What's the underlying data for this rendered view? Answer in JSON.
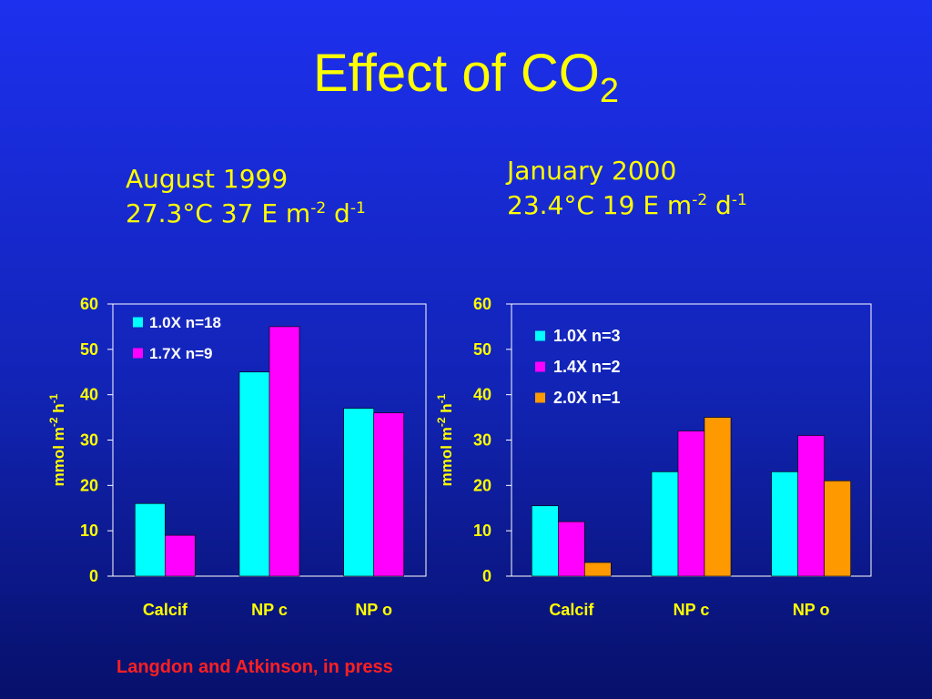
{
  "slide": {
    "title_main": "Effect of CO",
    "title_sub": "2",
    "citation": "Langdon and Atkinson, in press"
  },
  "conditions": {
    "left": {
      "line1": "August 1999",
      "temp_light": "27.3°C  37 E m",
      "exp1": "-2",
      "unit_d": " d",
      "exp2": "-1"
    },
    "right": {
      "line1": "January 2000",
      "temp_light": "23.4°C  19 E m",
      "exp1": "-2",
      "unit_d": " d",
      "exp2": "-1"
    }
  },
  "colors": {
    "series_1": "#00ffff",
    "series_2": "#ff00ff",
    "series_3": "#ff9900",
    "text": "#ffff00",
    "legend_text": "#ffffff",
    "citation": "#ff2020"
  },
  "chart_data": [
    {
      "type": "bar",
      "categories": [
        "Calcif",
        "NP c",
        "NP o"
      ],
      "ylabel_main": "mmol m",
      "ylabel_exp1": "-2",
      "ylabel_h": " h",
      "ylabel_exp2": "-1",
      "ylim": [
        0,
        60
      ],
      "yticks": [
        0,
        10,
        20,
        30,
        40,
        50,
        60
      ],
      "legend_position": "top-left",
      "series": [
        {
          "name": "1.0X n=18",
          "color": "#00ffff",
          "values": [
            16,
            45,
            37
          ]
        },
        {
          "name": "1.7X n=9",
          "color": "#ff00ff",
          "values": [
            9,
            55,
            36
          ]
        }
      ]
    },
    {
      "type": "bar",
      "categories": [
        "Calcif",
        "NP c",
        "NP o"
      ],
      "ylabel_main": "mmol m",
      "ylabel_exp1": "-2",
      "ylabel_h": " h",
      "ylabel_exp2": "-1",
      "ylim": [
        0,
        60
      ],
      "yticks": [
        0,
        10,
        20,
        30,
        40,
        50,
        60
      ],
      "legend_position": "top-left",
      "series": [
        {
          "name": "1.0X n=3",
          "color": "#00ffff",
          "values": [
            15.5,
            23,
            23
          ]
        },
        {
          "name": "1.4X n=2",
          "color": "#ff00ff",
          "values": [
            12,
            32,
            31
          ]
        },
        {
          "name": "2.0X n=1",
          "color": "#ff9900",
          "values": [
            3,
            35,
            21
          ]
        }
      ]
    }
  ]
}
